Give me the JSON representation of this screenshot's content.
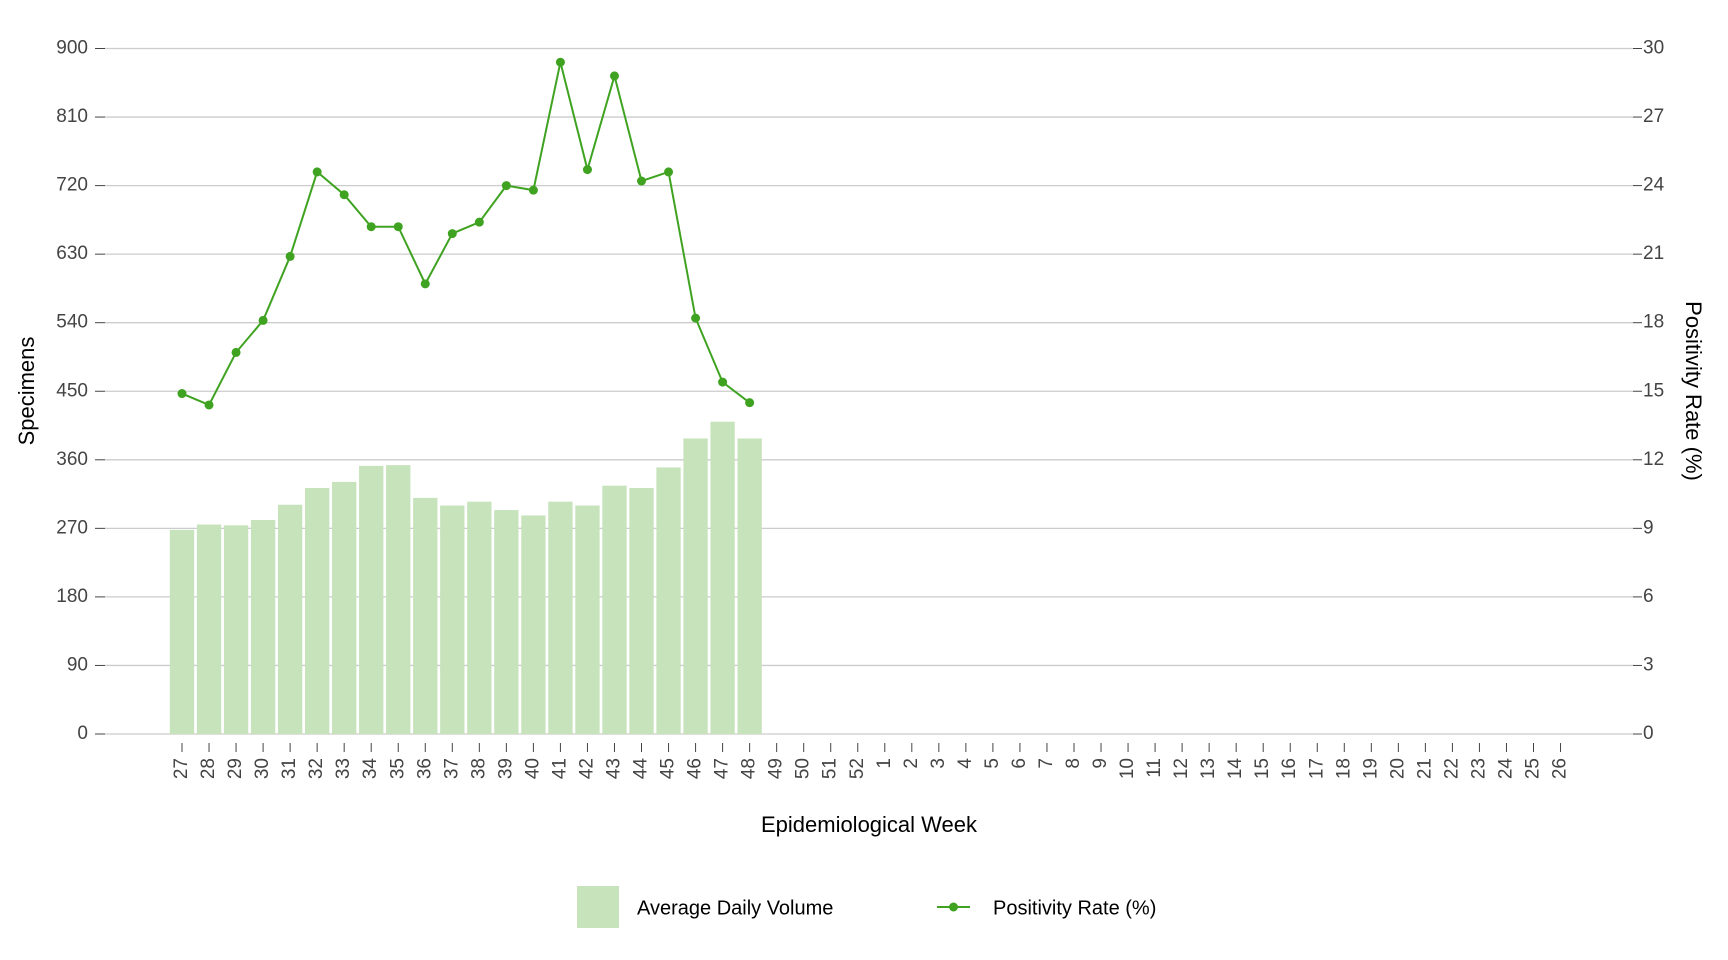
{
  "chart_data": {
    "type": "bar_line",
    "x_label": "Epidemiological Week",
    "y_label": "Specimens",
    "y2_label": "Positivity Rate (%)",
    "categories": [
      "27",
      "28",
      "29",
      "30",
      "31",
      "32",
      "33",
      "34",
      "35",
      "36",
      "37",
      "38",
      "39",
      "40",
      "41",
      "42",
      "43",
      "44",
      "45",
      "46",
      "47",
      "48",
      "49",
      "50",
      "51",
      "52",
      "1",
      "2",
      "3",
      "4",
      "5",
      "6",
      "7",
      "8",
      "9",
      "10",
      "11",
      "12",
      "13",
      "14",
      "15",
      "16",
      "17",
      "18",
      "19",
      "20",
      "21",
      "22",
      "23",
      "24",
      "25",
      "26"
    ],
    "series": [
      {
        "name": "Average Daily Volume",
        "type": "bar",
        "color": "#c7e3bc",
        "values": [
          268,
          275,
          274,
          281,
          301,
          323,
          331,
          352,
          353,
          310,
          300,
          305,
          294,
          287,
          305,
          300,
          326,
          323,
          350,
          388,
          410,
          388,
          null,
          null,
          null,
          null,
          null,
          null,
          null,
          null,
          null,
          null,
          null,
          null,
          null,
          null,
          null,
          null,
          null,
          null,
          null,
          null,
          null,
          null,
          null,
          null,
          null,
          null,
          null,
          null,
          null,
          null
        ]
      },
      {
        "name": "Positivity Rate (%)",
        "type": "line",
        "axis": "y2",
        "color": "#3fa321",
        "values": [
          14.9,
          14.4,
          16.7,
          18.1,
          20.9,
          24.6,
          23.6,
          22.2,
          22.2,
          19.7,
          21.9,
          22.4,
          24.0,
          23.8,
          29.4,
          24.7,
          28.8,
          24.2,
          24.6,
          18.2,
          15.4,
          14.5,
          null,
          null,
          null,
          null,
          null,
          null,
          null,
          null,
          null,
          null,
          null,
          null,
          null,
          null,
          null,
          null,
          null,
          null,
          null,
          null,
          null,
          null,
          null,
          null,
          null,
          null,
          null,
          null,
          null,
          null
        ]
      }
    ],
    "ylim": [
      0,
      900
    ],
    "yticks": [
      0,
      90,
      180,
      270,
      360,
      450,
      540,
      630,
      720,
      810,
      900
    ],
    "y2lim": [
      0,
      30
    ],
    "y2ticks": [
      0,
      3,
      6,
      9,
      12,
      15,
      18,
      21,
      24,
      27,
      30
    ],
    "grid": true,
    "legend": "bottom"
  }
}
